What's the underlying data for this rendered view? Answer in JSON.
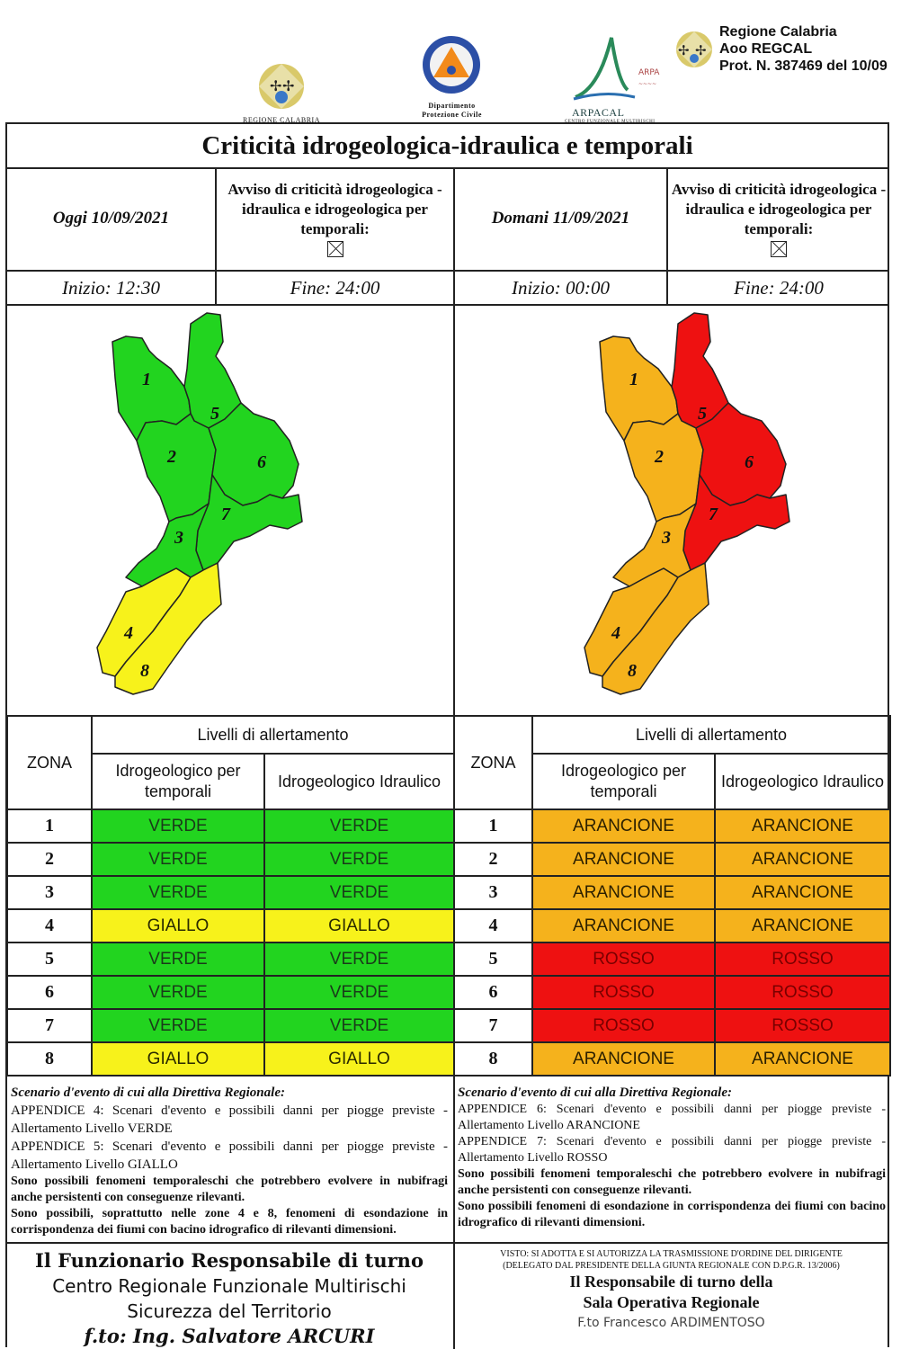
{
  "header": {
    "logo1_text": "REGIONE CALABRIA",
    "logo2_text_line1": "Dipartimento",
    "logo2_text_line2": "Protezione Civile",
    "logo3_text": "ARPACAL",
    "logo3_sub": "CENTRO FUNZIONALE MULTIRISCHI",
    "protocol_line1": "Regione Calabria",
    "protocol_line2": "Aoo REGCAL",
    "protocol_line3": "Prot. N. 387469 del 10/09"
  },
  "title": "Criticità idrogeologica-idraulica e temporali",
  "today": {
    "date": "Oggi 10/09/2021",
    "avviso": "Avviso di criticità idrogeologica - idraulica e idrogeologica per temporali:",
    "start": "Inizio: 12:30",
    "end": "Fine: 24:00"
  },
  "tomorrow": {
    "date": "Domani 11/09/2021",
    "avviso": "Avviso di criticità idrogeologica - idraulica e idrogeologica per temporali:",
    "start": "Inizio: 00:00",
    "end": "Fine: 24:00"
  },
  "table_headers": {
    "zona": "ZONA",
    "livelli": "Livelli di allertamento",
    "col1": "Idrogeologico per temporali",
    "col2": "Idrogeologico Idraulico"
  },
  "colors": {
    "VERDE": "#22d41f",
    "GIALLO": "#f7f21b",
    "ARANCIONE": "#f5b21c",
    "ROSSO": "#ee1111"
  },
  "zones_today": [
    {
      "zona": "1",
      "temporali": "VERDE",
      "idraulico": "VERDE"
    },
    {
      "zona": "2",
      "temporali": "VERDE",
      "idraulico": "VERDE"
    },
    {
      "zona": "3",
      "temporali": "VERDE",
      "idraulico": "VERDE"
    },
    {
      "zona": "4",
      "temporali": "GIALLO",
      "idraulico": "GIALLO"
    },
    {
      "zona": "5",
      "temporali": "VERDE",
      "idraulico": "VERDE"
    },
    {
      "zona": "6",
      "temporali": "VERDE",
      "idraulico": "VERDE"
    },
    {
      "zona": "7",
      "temporali": "VERDE",
      "idraulico": "VERDE"
    },
    {
      "zona": "8",
      "temporali": "GIALLO",
      "idraulico": "GIALLO"
    }
  ],
  "zones_tomorrow": [
    {
      "zona": "1",
      "temporali": "ARANCIONE",
      "idraulico": "ARANCIONE"
    },
    {
      "zona": "2",
      "temporali": "ARANCIONE",
      "idraulico": "ARANCIONE"
    },
    {
      "zona": "3",
      "temporali": "ARANCIONE",
      "idraulico": "ARANCIONE"
    },
    {
      "zona": "4",
      "temporali": "ARANCIONE",
      "idraulico": "ARANCIONE"
    },
    {
      "zona": "5",
      "temporali": "ROSSO",
      "idraulico": "ROSSO"
    },
    {
      "zona": "6",
      "temporali": "ROSSO",
      "idraulico": "ROSSO"
    },
    {
      "zona": "7",
      "temporali": "ROSSO",
      "idraulico": "ROSSO"
    },
    {
      "zona": "8",
      "temporali": "ARANCIONE",
      "idraulico": "ARANCIONE"
    }
  ],
  "scenario_today": {
    "heading": "Scenario d'evento di cui alla Direttiva Regionale:",
    "p1": "APPENDICE 4: Scenari d'evento e possibili danni per piogge previste - Allertamento Livello VERDE",
    "p2": "APPENDICE 5: Scenari d'evento e possibili danni per piogge previste - Allertamento Livello GIALLO",
    "p3": "Sono possibili fenomeni temporaleschi che potrebbero evolvere in nubifragi anche persistenti con conseguenze rilevanti.",
    "p4": "Sono possibili, soprattutto nelle zone 4 e 8, fenomeni di esondazione in corrispondenza dei fiumi con bacino idrografico di rilevanti dimensioni."
  },
  "scenario_tomorrow": {
    "heading": "Scenario d'evento di cui alla Direttiva Regionale:",
    "p1": "APPENDICE 6: Scenari d'evento e possibili danni per piogge previste - Allertamento Livello ARANCIONE",
    "p2": "APPENDICE 7: Scenari d'evento e possibili danni per piogge previste - Allertamento Livello ROSSO",
    "p3": "Sono possibili fenomeni temporaleschi che potrebbero evolvere in nubifragi anche persistenti con conseguenze rilevanti.",
    "p4": "Sono possibili fenomeni di esondazione in corrispondenza dei fiumi con bacino idrografico di rilevanti dimensioni."
  },
  "signature_left": {
    "line1": "Il Funzionario Responsabile di turno",
    "line2": "Centro Regionale Funzionale Multirischi",
    "line3": "Sicurezza del Territorio",
    "line4": "f.to: Ing. Salvatore ARCURI"
  },
  "signature_right": {
    "note1": "VISTO: SI ADOTTA E SI AUTORIZZA LA TRASMISSIONE D'ORDINE DEL DIRIGENTE",
    "note2": "(DELEGATO DAL PRESIDENTE DELLA GIUNTA REGIONALE CON D.P.G.R. 13/2006)",
    "line1": "Il Responsabile di turno della",
    "line2": "Sala Operativa Regionale",
    "line3": "F.to Francesco ARDIMENTOSO"
  },
  "map_zone_labels": [
    "1",
    "2",
    "3",
    "4",
    "5",
    "6",
    "7",
    "8"
  ]
}
